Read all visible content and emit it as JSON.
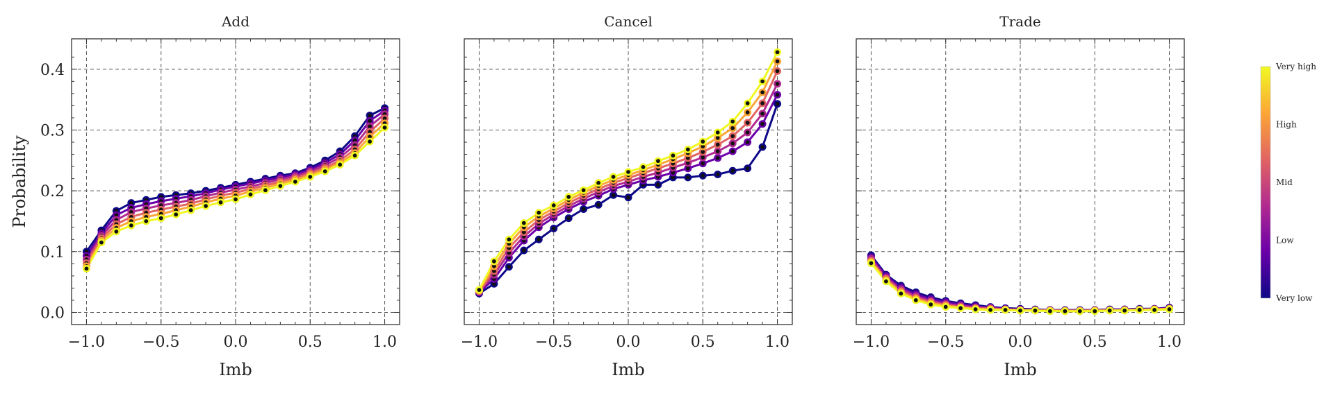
{
  "chart_data": {
    "type": "line",
    "ylabel": "Probability",
    "xlabel": "Imb",
    "x": [
      -1.0,
      -0.9,
      -0.8,
      -0.7,
      -0.6,
      -0.5,
      -0.4,
      -0.3,
      -0.2,
      -0.1,
      0.0,
      0.1,
      0.2,
      0.3,
      0.4,
      0.5,
      0.6,
      0.7,
      0.8,
      0.9,
      1.0
    ],
    "xlim": [
      -1.1,
      1.1
    ],
    "ylim": [
      -0.02,
      0.45
    ],
    "xticks": [
      -1.0,
      -0.5,
      0.0,
      0.5,
      1.0
    ],
    "xtick_labels": [
      "−1.0",
      "−0.5",
      "0.0",
      "0.5",
      "1.0"
    ],
    "yticks": [
      0.0,
      0.1,
      0.2,
      0.3,
      0.4
    ],
    "ytick_labels": [
      "0.0",
      "0.1",
      "0.2",
      "0.3",
      "0.4"
    ],
    "grid": true,
    "colorbar": {
      "labels": [
        "Very high",
        "High",
        "Mid",
        "Low",
        "Very low"
      ],
      "colors": [
        "#f0f921",
        "#fca636",
        "#e16462",
        "#b12a90",
        "#6a00a8",
        "#0d0887"
      ]
    },
    "series_colors": [
      "#0d0887",
      "#6a00a8",
      "#b12a90",
      "#e16462",
      "#fca636",
      "#f0f921"
    ],
    "panels": [
      {
        "title": "Add",
        "series": [
          {
            "values": [
              0.1,
              0.135,
              0.167,
              0.18,
              0.185,
              0.19,
              0.193,
              0.196,
              0.2,
              0.205,
              0.21,
              0.215,
              0.22,
              0.225,
              0.229,
              0.238,
              0.25,
              0.265,
              0.29,
              0.324,
              0.336
            ]
          },
          {
            "values": [
              0.093,
              0.13,
              0.16,
              0.172,
              0.178,
              0.183,
              0.187,
              0.191,
              0.196,
              0.202,
              0.207,
              0.212,
              0.217,
              0.222,
              0.227,
              0.235,
              0.246,
              0.26,
              0.283,
              0.315,
              0.332
            ]
          },
          {
            "values": [
              0.087,
              0.126,
              0.152,
              0.165,
              0.171,
              0.176,
              0.18,
              0.185,
              0.191,
              0.197,
              0.202,
              0.207,
              0.213,
              0.219,
              0.224,
              0.232,
              0.242,
              0.255,
              0.275,
              0.306,
              0.326
            ]
          },
          {
            "values": [
              0.081,
              0.122,
              0.145,
              0.157,
              0.164,
              0.169,
              0.174,
              0.179,
              0.186,
              0.192,
              0.197,
              0.203,
              0.209,
              0.215,
              0.221,
              0.229,
              0.238,
              0.25,
              0.268,
              0.297,
              0.319
            ]
          },
          {
            "values": [
              0.076,
              0.118,
              0.139,
              0.15,
              0.157,
              0.162,
              0.168,
              0.174,
              0.181,
              0.187,
              0.192,
              0.199,
              0.205,
              0.212,
              0.218,
              0.226,
              0.235,
              0.246,
              0.262,
              0.289,
              0.311
            ]
          },
          {
            "values": [
              0.072,
              0.115,
              0.133,
              0.143,
              0.15,
              0.155,
              0.161,
              0.168,
              0.175,
              0.181,
              0.186,
              0.194,
              0.201,
              0.208,
              0.215,
              0.223,
              0.232,
              0.243,
              0.258,
              0.281,
              0.304
            ]
          }
        ]
      },
      {
        "title": "Cancel",
        "series": [
          {
            "values": [
              0.031,
              0.047,
              0.075,
              0.102,
              0.12,
              0.138,
              0.155,
              0.17,
              0.177,
              0.193,
              0.189,
              0.21,
              0.21,
              0.222,
              0.222,
              0.225,
              0.227,
              0.233,
              0.237,
              0.272,
              0.343
            ]
          },
          {
            "values": [
              0.033,
              0.055,
              0.09,
              0.118,
              0.14,
              0.156,
              0.17,
              0.182,
              0.192,
              0.203,
              0.21,
              0.217,
              0.223,
              0.23,
              0.237,
              0.245,
              0.254,
              0.265,
              0.28,
              0.31,
              0.358
            ]
          },
          {
            "values": [
              0.034,
              0.062,
              0.098,
              0.125,
              0.146,
              0.161,
              0.175,
              0.187,
              0.198,
              0.208,
              0.215,
              0.223,
              0.23,
              0.238,
              0.246,
              0.255,
              0.265,
              0.278,
              0.296,
              0.327,
              0.376
            ]
          },
          {
            "values": [
              0.035,
              0.068,
              0.106,
              0.132,
              0.152,
              0.166,
              0.18,
              0.192,
              0.203,
              0.213,
              0.221,
              0.229,
              0.237,
              0.245,
              0.254,
              0.264,
              0.276,
              0.29,
              0.312,
              0.344,
              0.397
            ]
          },
          {
            "values": [
              0.036,
              0.076,
              0.113,
              0.14,
              0.158,
              0.171,
              0.185,
              0.197,
              0.208,
              0.218,
              0.226,
              0.234,
              0.243,
              0.252,
              0.262,
              0.273,
              0.287,
              0.303,
              0.329,
              0.362,
              0.413
            ]
          },
          {
            "values": [
              0.037,
              0.084,
              0.12,
              0.147,
              0.164,
              0.176,
              0.19,
              0.201,
              0.213,
              0.223,
              0.231,
              0.239,
              0.249,
              0.258,
              0.268,
              0.281,
              0.296,
              0.314,
              0.344,
              0.38,
              0.428
            ]
          }
        ]
      },
      {
        "title": "Trade",
        "series": [
          {
            "values": [
              0.094,
              0.062,
              0.044,
              0.033,
              0.025,
              0.019,
              0.015,
              0.012,
              0.009,
              0.007,
              0.006,
              0.005,
              0.004,
              0.004,
              0.004,
              0.004,
              0.005,
              0.005,
              0.006,
              0.006,
              0.008
            ]
          },
          {
            "values": [
              0.091,
              0.06,
              0.041,
              0.03,
              0.022,
              0.017,
              0.013,
              0.01,
              0.008,
              0.006,
              0.005,
              0.004,
              0.004,
              0.003,
              0.003,
              0.004,
              0.004,
              0.005,
              0.005,
              0.006,
              0.007
            ]
          },
          {
            "values": [
              0.088,
              0.057,
              0.038,
              0.027,
              0.019,
              0.014,
              0.011,
              0.008,
              0.007,
              0.005,
              0.004,
              0.004,
              0.003,
              0.003,
              0.003,
              0.003,
              0.004,
              0.004,
              0.005,
              0.005,
              0.006
            ]
          },
          {
            "values": [
              0.085,
              0.055,
              0.035,
              0.024,
              0.017,
              0.012,
              0.009,
              0.007,
              0.006,
              0.005,
              0.004,
              0.003,
              0.003,
              0.003,
              0.003,
              0.003,
              0.003,
              0.004,
              0.004,
              0.005,
              0.006
            ]
          },
          {
            "values": [
              0.083,
              0.053,
              0.033,
              0.022,
              0.015,
              0.011,
              0.008,
              0.006,
              0.005,
              0.004,
              0.003,
              0.003,
              0.003,
              0.002,
              0.002,
              0.003,
              0.003,
              0.003,
              0.004,
              0.005,
              0.006
            ]
          },
          {
            "values": [
              0.081,
              0.051,
              0.031,
              0.02,
              0.013,
              0.009,
              0.007,
              0.005,
              0.004,
              0.004,
              0.003,
              0.003,
              0.002,
              0.002,
              0.002,
              0.002,
              0.003,
              0.003,
              0.004,
              0.004,
              0.005
            ]
          }
        ]
      }
    ]
  }
}
